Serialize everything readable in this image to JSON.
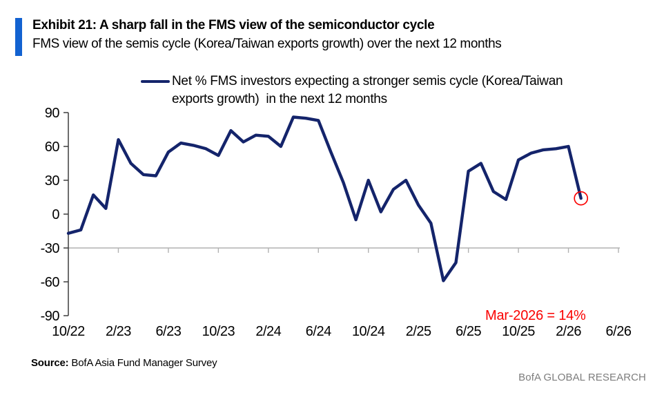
{
  "header": {
    "exhibit_title": "Exhibit 21: A sharp fall in the FMS view of the semiconductor cycle",
    "subtitle": "FMS view of the semis cycle (Korea/Taiwan exports growth) over the next 12 months",
    "accent_bar_color": "#1262D1"
  },
  "legend": {
    "line1": "Net % FMS investors expecting a stronger semis cycle (Korea/Taiwan",
    "line2": "exports growth)  in the next 12 months",
    "swatch_color": "#14246B"
  },
  "annotation": {
    "text": "Mar-2026 = 14%",
    "color": "#FA0100"
  },
  "footer": {
    "source_label": "Source:",
    "source_text": "BofA Asia Fund Manager Survey",
    "brand": "BofA GLOBAL RESEARCH"
  },
  "chart_data": {
    "type": "line",
    "title": "Net % FMS investors expecting a stronger semis cycle (Korea/Taiwan exports growth) in the next 12 months",
    "x": [
      "Oct-22",
      "Nov-22",
      "Dec-22",
      "Jan-23",
      "Feb-23",
      "Mar-23",
      "Apr-23",
      "May-23",
      "Jun-23",
      "Jul-23",
      "Aug-23",
      "Sep-23",
      "Oct-23",
      "Nov-23",
      "Dec-23",
      "Jan-24",
      "Feb-24",
      "Mar-24",
      "Apr-24",
      "May-24",
      "Jun-24",
      "Jul-24",
      "Aug-24",
      "Sep-24",
      "Oct-24",
      "Nov-24",
      "Dec-24",
      "Jan-25",
      "Feb-25",
      "Mar-25",
      "Apr-25",
      "May-25",
      "Jun-25",
      "Jul-25",
      "Aug-25",
      "Sep-25",
      "Oct-25",
      "Nov-25",
      "Dec-25",
      "Jan-26",
      "Feb-26",
      "Mar-26"
    ],
    "values": [
      -17,
      -14,
      17,
      5,
      66,
      45,
      35,
      34,
      55,
      63,
      61,
      58,
      52,
      74,
      64,
      70,
      69,
      60,
      86,
      85,
      83,
      55,
      28,
      -5,
      30,
      2,
      22,
      30,
      8,
      -8,
      -59,
      -43,
      38,
      45,
      20,
      13,
      48,
      54,
      57,
      58,
      60,
      14
    ],
    "x_tick_labels": [
      "10/22",
      "2/23",
      "6/23",
      "10/23",
      "2/24",
      "6/24",
      "10/24",
      "2/25",
      "6/25",
      "10/25",
      "2/26",
      "6/26"
    ],
    "x_tick_months": [
      0,
      4,
      8,
      12,
      16,
      20,
      24,
      28,
      32,
      36,
      40,
      44
    ],
    "y_ticks": [
      90,
      60,
      30,
      0,
      -30,
      -60,
      -90
    ],
    "ylim": [
      -90,
      90
    ],
    "x_axis_crosses_at": -30,
    "grid": "off",
    "legend_position": "top",
    "line_color": "#14246B",
    "axis_color": "#3D3D3D",
    "baseline_color": "#B2B2B2",
    "highlight": {
      "index": 41,
      "month": "Mar-2026",
      "value": 14,
      "circle_color": "#FA0100"
    }
  }
}
